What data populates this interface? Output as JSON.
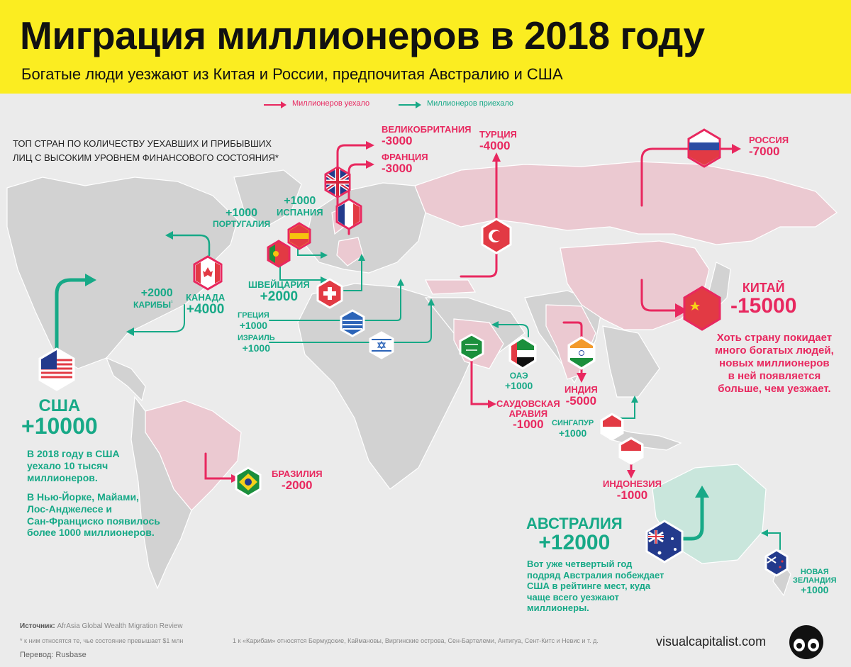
{
  "header": {
    "title": "Миграция миллионеров в 2018 году",
    "subtitle": "Богатые люди уезжают из Китая и России, предпочитая Австралию и США"
  },
  "legend": {
    "left_label": "Миллионеров уехало",
    "right_label": "Миллионеров приехало",
    "left_color": "#e8285f",
    "right_color": "#17a987"
  },
  "top_note": {
    "line1": "ТОП СТРАН ПО КОЛИЧЕСТВУ УЕХАВШИХ И ПРИБЫВШИХ",
    "line2": "ЛИЦ С ВЫСОКИМ УРОВНЕМ ФИНАНСОВОГО СОСТОЯНИЯ*"
  },
  "countries": {
    "uk": {
      "name": "ВЕЛИКОБРИТАНИЯ",
      "value": "-3000"
    },
    "france": {
      "name": "ФРАНЦИЯ",
      "value": "-3000"
    },
    "turkey": {
      "name": "ТУРЦИЯ",
      "value": "-4000"
    },
    "russia": {
      "name": "РОССИЯ",
      "value": "-7000"
    },
    "spain": {
      "name": "ИСПАНИЯ",
      "value": "+1000"
    },
    "portugal": {
      "name": "ПОРТУГАЛИЯ",
      "value": "+1000"
    },
    "switzerland": {
      "name": "ШВЕЙЦАРИЯ",
      "value": "+2000"
    },
    "canada": {
      "name": "КАНАДА",
      "value": "+4000"
    },
    "caribbean": {
      "name": "КАРИБЫ",
      "sup": "¹",
      "value": "+2000"
    },
    "greece": {
      "name": "ГРЕЦИЯ",
      "value": "+1000"
    },
    "israel": {
      "name": "ИЗРАИЛЬ",
      "value": "+1000"
    },
    "china": {
      "name": "КИТАЙ",
      "value": "-15000",
      "note": [
        "Хоть страну покидает",
        "много богатых людей,",
        "новых миллионеров",
        "в ней появляется",
        "больше, чем уезжает."
      ]
    },
    "uae": {
      "name": "ОАЭ",
      "value": "+1000"
    },
    "saudi": {
      "name1": "САУДОВСКАЯ",
      "name2": "АРАВИЯ",
      "value": "-1000"
    },
    "india": {
      "name": "ИНДИЯ",
      "value": "-5000"
    },
    "singapore": {
      "name": "СИНГАПУР",
      "value": "+1000"
    },
    "indonesia": {
      "name": "ИНДОНЕЗИЯ",
      "value": "-1000"
    },
    "usa": {
      "name": "США",
      "value": "+10000",
      "note1": [
        "В 2018 году в США",
        "уехало 10 тысяч",
        "миллионеров."
      ],
      "note2": [
        "В Нью-Йорке, Майами,",
        "Лос-Анджелесе и",
        "Сан-Франциско появилось",
        "более 1000 миллионеров."
      ]
    },
    "brazil": {
      "name": "БРАЗИЛИЯ",
      "value": "-2000"
    },
    "australia": {
      "name": "АВСТРАЛИЯ",
      "value": "+12000",
      "note": [
        "Вот уже четвертый год",
        "подряд Австралия побеждает",
        "США в рейтинге мест, куда",
        "чаще всего уезжают",
        "миллионеры."
      ]
    },
    "newzealand": {
      "name1": "НОВАЯ",
      "name2": "ЗЕЛАНДИЯ",
      "value": "+1000"
    }
  },
  "footer": {
    "source_label": "Источник:",
    "source": "AfrAsia Global Wealth Migration Review",
    "footnote1": "* к ним относятся те, чье состояние превышает $1 млн",
    "footnote2": "1 к «Карибам» относятся Бермудские, Каймановы, Виргинские острова, Сен-Бартелеми, Антигуа, Сент-Китс и Невис и т. д.",
    "translation": "Перевод: Rusbase",
    "brand": "visualcapitalist.com"
  }
}
